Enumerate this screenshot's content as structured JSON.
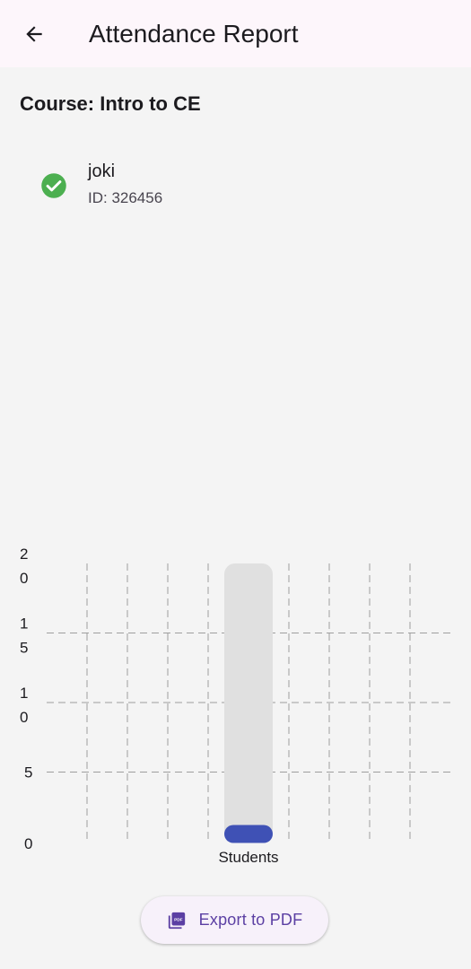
{
  "appbar": {
    "title": "Attendance Report",
    "back_icon": "arrow-left-icon"
  },
  "course": {
    "title": "Course: Intro to CE"
  },
  "students": [
    {
      "name": "joki",
      "id_text": "ID: 326456",
      "status_icon": "check-circle-icon",
      "status_color": "#4caf50"
    }
  ],
  "chart_data": {
    "type": "bar",
    "categories": [
      "Students"
    ],
    "values": [
      1
    ],
    "ylim": [
      0,
      20
    ],
    "yticks": [
      0,
      5,
      10,
      15,
      20
    ],
    "ytick_labels": [
      "0",
      "5",
      "1\n0",
      "1\n5",
      "2\n0"
    ],
    "grid": true,
    "bar_color": "#3f51b5",
    "background_bar_color": "#e0e0e0"
  },
  "footer": {
    "export_label": "Export to PDF",
    "export_icon": "pdf-icon",
    "accent": "#5b3fa3"
  }
}
